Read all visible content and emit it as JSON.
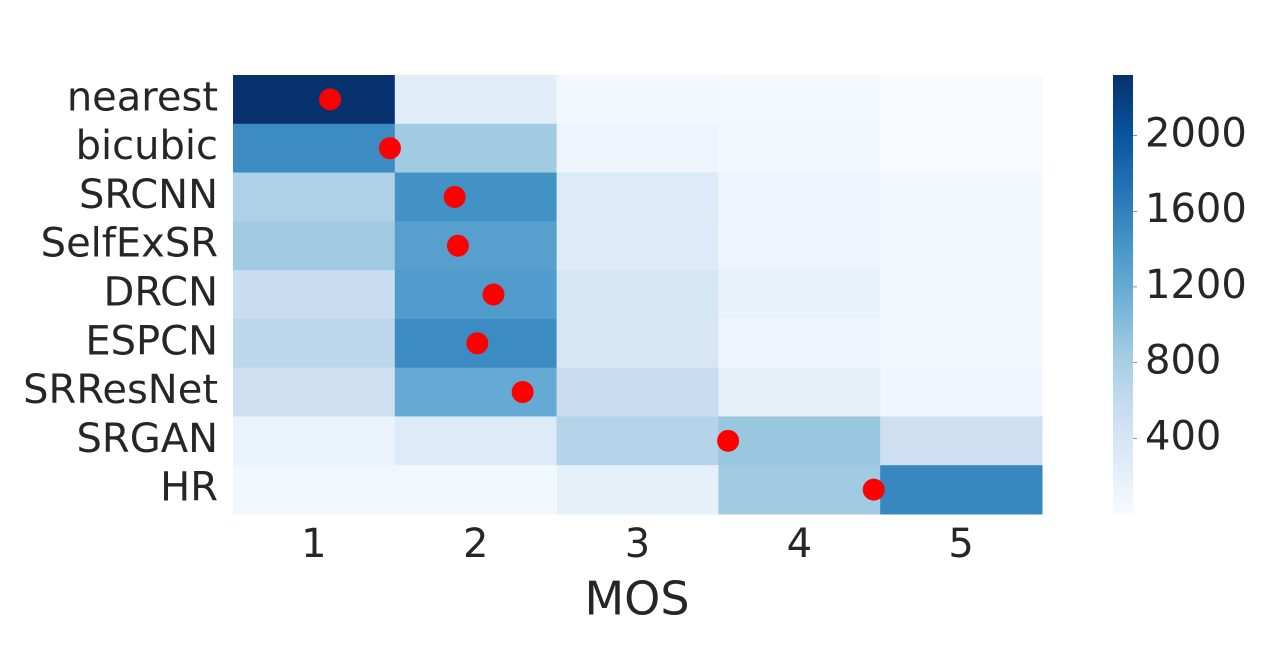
{
  "chart_data": {
    "type": "heatmap",
    "xlabel": "MOS",
    "x": [
      "1",
      "2",
      "3",
      "4",
      "5"
    ],
    "y": [
      "nearest",
      "bicubic",
      "SRCNN",
      "SelfExSR",
      "DRCN",
      "ESPCN",
      "SRResNet",
      "SRGAN",
      "HR"
    ],
    "values": [
      [
        2300,
        250,
        60,
        40,
        0
      ],
      [
        1500,
        850,
        120,
        50,
        0
      ],
      [
        750,
        1450,
        300,
        100,
        50
      ],
      [
        850,
        1300,
        300,
        120,
        60
      ],
      [
        550,
        1350,
        380,
        170,
        70
      ],
      [
        650,
        1500,
        380,
        100,
        60
      ],
      [
        500,
        1200,
        550,
        200,
        90
      ],
      [
        150,
        300,
        700,
        900,
        500
      ],
      [
        80,
        80,
        200,
        850,
        1550
      ]
    ],
    "mean_mos": [
      1.1,
      1.47,
      1.87,
      1.89,
      2.11,
      2.01,
      2.29,
      3.56,
      4.46
    ],
    "dot_color": "#ff0000",
    "colormap": [
      "#f7fbff",
      "#deebf7",
      "#c6dbef",
      "#9ecae1",
      "#6baed6",
      "#4292c6",
      "#2171b5",
      "#08519c",
      "#08306b"
    ],
    "clim": [
      0,
      2320
    ],
    "colorbar_ticks": [
      400,
      800,
      1200,
      1600,
      2000
    ]
  }
}
